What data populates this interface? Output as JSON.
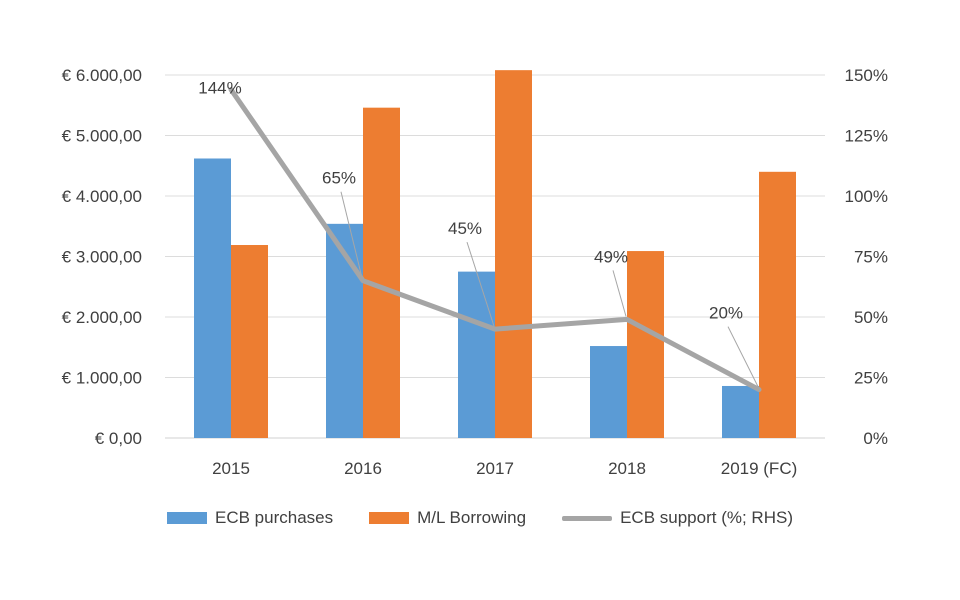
{
  "chart_data": {
    "type": "bar",
    "categories": [
      "2015",
      "2016",
      "2017",
      "2018",
      "2019 (FC)"
    ],
    "series": [
      {
        "name": "ECB purchases",
        "kind": "bar",
        "axis": "left",
        "color": "#5B9BD5",
        "values": [
          4620,
          3540,
          2750,
          1520,
          860
        ]
      },
      {
        "name": "M/L Borrowing",
        "kind": "bar",
        "axis": "left",
        "color": "#ED7D31",
        "values": [
          3190,
          5460,
          6080,
          3090,
          4400
        ]
      },
      {
        "name": "ECB support (%; RHS)",
        "kind": "line",
        "axis": "right",
        "color": "#A5A5A5",
        "values": [
          144,
          65,
          45,
          49,
          20
        ]
      }
    ],
    "line_labels": [
      "144%",
      "65%",
      "45%",
      "49%",
      "20%"
    ],
    "y_left": {
      "min": 0,
      "max": 6000,
      "step": 1000,
      "tick_labels": [
        "€ 0,00",
        "€ 1.000,00",
        "€ 2.000,00",
        "€ 3.000,00",
        "€ 4.000,00",
        "€ 5.000,00",
        "€ 6.000,00"
      ]
    },
    "y_right": {
      "min": 0,
      "max": 150,
      "step": 25,
      "tick_labels": [
        "0%",
        "25%",
        "50%",
        "75%",
        "100%",
        "125%",
        "150%"
      ]
    },
    "grid": true,
    "legend_position": "bottom"
  }
}
